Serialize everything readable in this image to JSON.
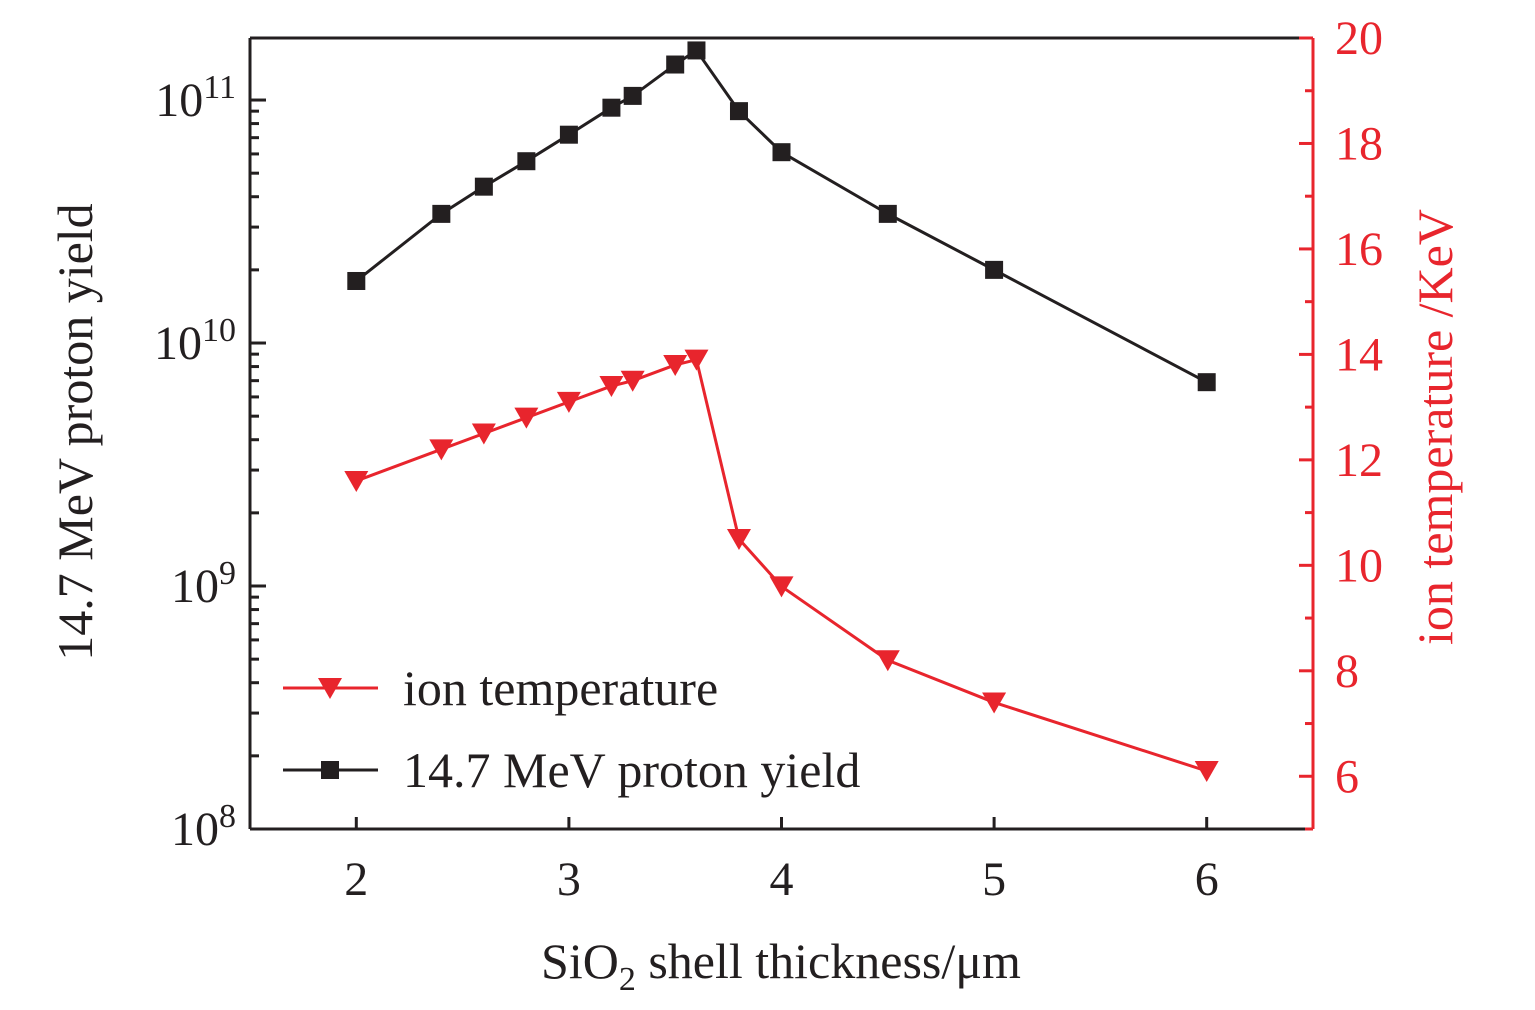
{
  "colors": {
    "black": "#231f20",
    "red": "#e8252d",
    "background": "#ffffff"
  },
  "chart_data": {
    "type": "line",
    "xlabel": "SiO2 shell thickness/μm",
    "xlabel_parts": {
      "base": "SiO",
      "sub": "2",
      "rest": " shell thickness/μm"
    },
    "ylabel_left": "14.7 MeV proton yield",
    "ylabel_right": "ion temperature /KeV",
    "xlim": [
      1.5,
      6.5
    ],
    "x_ticks": [
      2,
      3,
      4,
      5,
      6
    ],
    "x_tick_labels": [
      "2",
      "3",
      "4",
      "5",
      "6"
    ],
    "ylim_left": [
      100000000.0,
      180000000000.0
    ],
    "yscale_left": "log",
    "y_left_ticks": [
      {
        "mantissa": "10",
        "exponent": "8",
        "value": 100000000.0
      },
      {
        "mantissa": "10",
        "exponent": "9",
        "value": 1000000000.0
      },
      {
        "mantissa": "10",
        "exponent": "10",
        "value": 10000000000.0
      },
      {
        "mantissa": "10",
        "exponent": "11",
        "value": 100000000000.0
      }
    ],
    "ylim_right": [
      5,
      20
    ],
    "y_right_ticks": [
      6,
      8,
      10,
      12,
      14,
      16,
      18,
      20
    ],
    "y_right_tick_labels": [
      "6",
      "8",
      "10",
      "12",
      "14",
      "16",
      "18",
      "20"
    ],
    "grid": false,
    "legend_position": "bottom-left",
    "series": [
      {
        "name": "ion temperature",
        "axis": "right",
        "color": "#e8252d",
        "marker": "triangle-down",
        "x": [
          2.0,
          2.4,
          2.6,
          2.8,
          3.0,
          3.2,
          3.3,
          3.5,
          3.6,
          3.8,
          4.0,
          4.5,
          5.0,
          6.0
        ],
        "values": [
          11.6,
          12.2,
          12.5,
          12.8,
          13.1,
          13.4,
          13.5,
          13.8,
          13.9,
          10.5,
          9.6,
          8.2,
          7.4,
          6.1
        ]
      },
      {
        "name": "14.7 MeV proton yield",
        "axis": "left",
        "color": "#231f20",
        "marker": "square",
        "x": [
          2.0,
          2.4,
          2.6,
          2.8,
          3.0,
          3.2,
          3.3,
          3.5,
          3.6,
          3.8,
          4.0,
          4.5,
          5.0,
          6.0
        ],
        "values": [
          18000000000.0,
          34000000000.0,
          44000000000.0,
          56000000000.0,
          72000000000.0,
          93000000000.0,
          104000000000.0,
          140000000000.0,
          160000000000.0,
          90000000000.0,
          61000000000.0,
          34000000000.0,
          20000000000.0,
          6900000000.0
        ]
      }
    ]
  }
}
